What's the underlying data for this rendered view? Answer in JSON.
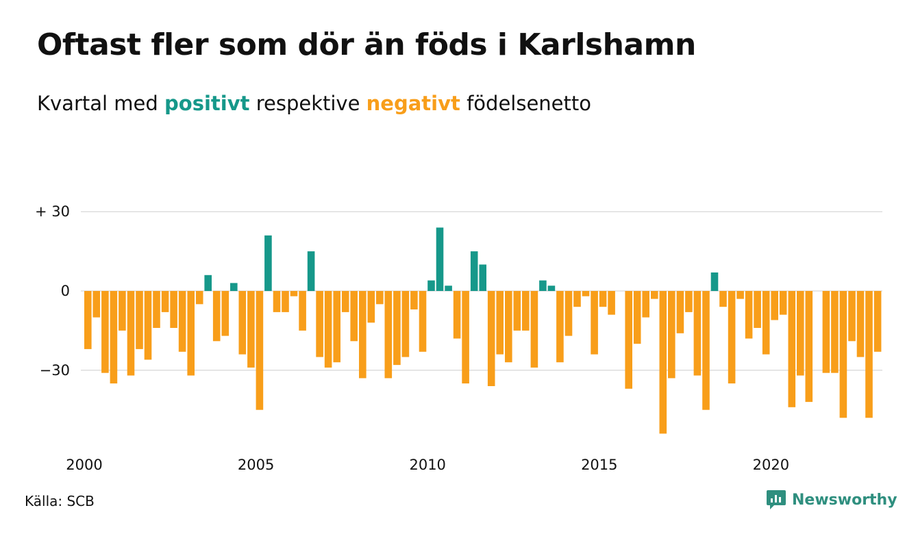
{
  "header": {
    "title": "Oftast fler som dör än föds i Karlshamn",
    "subtitle_prefix": "Kvartal med",
    "subtitle_positive": "positivt",
    "subtitle_middle": "respektive",
    "subtitle_negative": "negativt",
    "subtitle_suffix": "födelsenetto"
  },
  "footer": {
    "source": "Källa: SCB",
    "brand": "Newsworthy"
  },
  "colors": {
    "positive": "#16988a",
    "negative": "#f89e1a",
    "brand": "#2f8f7f",
    "grid": "#dddddd"
  },
  "chart_data": {
    "type": "bar",
    "title": "Oftast fler som dör än föds i Karlshamn",
    "subtitle": "Kvartal med positivt respektive negativt födelsenetto",
    "xlabel": "",
    "ylabel": "",
    "start": "2000 Q1",
    "ylim": [
      -55,
      32
    ],
    "yticks": [
      30,
      0,
      -30
    ],
    "ytick_labels": [
      "+ 30",
      "0",
      "−30"
    ],
    "xtick_labels": [
      "2000",
      "2005",
      "2010",
      "2015",
      "2020"
    ],
    "grid": true,
    "values": [
      -22,
      -10,
      -31,
      -35,
      -15,
      -32,
      -22,
      -26,
      -14,
      -8,
      -14,
      -23,
      -32,
      -5,
      6,
      -19,
      -17,
      3,
      -24,
      -29,
      -45,
      21,
      -8,
      -8,
      -2,
      -15,
      15,
      -25,
      -29,
      -27,
      -8,
      -19,
      -33,
      -12,
      -5,
      -33,
      -28,
      -25,
      -7,
      -23,
      4,
      24,
      2,
      -18,
      -35,
      15,
      10,
      -36,
      -24,
      -27,
      -15,
      -15,
      -29,
      4,
      2,
      -27,
      -17,
      -6,
      -2,
      -24,
      -6,
      -9,
      0,
      -37,
      -20,
      -10,
      -3,
      -54,
      -33,
      -16,
      -8,
      -32,
      -45,
      7,
      -6,
      -35,
      -3,
      -18,
      -14,
      -24,
      -11,
      -9,
      -44,
      -32,
      -42,
      0,
      -31,
      -31,
      -48,
      -19,
      -25,
      -48,
      -23
    ]
  }
}
